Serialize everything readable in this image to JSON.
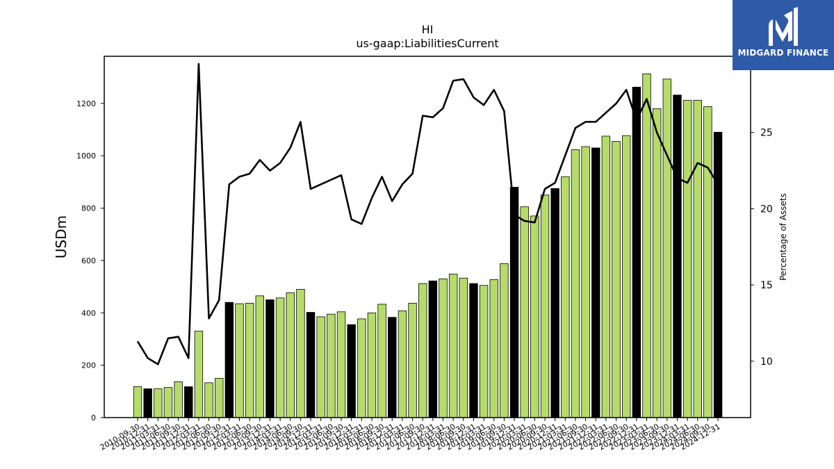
{
  "chart_data": {
    "type": "bar",
    "title": "HI",
    "subtitle": "us-gaap:LiabilitiesCurrent",
    "ylabel": "USDm",
    "y2label": "Percentage of Assets",
    "ylim": [
      0,
      1380
    ],
    "y2lim": [
      6.3,
      30.0
    ],
    "yticks": [
      0,
      200,
      400,
      600,
      800,
      1000,
      1200
    ],
    "y2ticks": [
      10,
      15,
      20,
      25
    ],
    "colors": {
      "q4_bar": "#000000",
      "other_bar": "#b5dc6a",
      "line": "#000000"
    },
    "categories": [
      "2010-09-30",
      "2010-12-31",
      "2011-03-31",
      "2011-06-30",
      "2011-09-30",
      "2011-12-31",
      "2012-03-31",
      "2012-06-30",
      "2012-09-30",
      "2012-12-31",
      "2013-03-31",
      "2013-06-30",
      "2013-09-30",
      "2013-12-31",
      "2014-03-31",
      "2014-06-30",
      "2014-09-30",
      "2014-12-31",
      "2015-03-31",
      "2015-06-30",
      "2015-09-30",
      "2015-12-31",
      "2016-03-31",
      "2016-06-30",
      "2016-09-30",
      "2016-12-31",
      "2017-03-31",
      "2017-06-30",
      "2017-09-30",
      "2017-12-31",
      "2018-03-31",
      "2018-06-30",
      "2018-09-30",
      "2018-12-31",
      "2019-03-31",
      "2019-06-30",
      "2019-09-30",
      "2019-12-31",
      "2020-03-31",
      "2020-06-30",
      "2020-09-30",
      "2020-12-31",
      "2021-03-31",
      "2021-06-30",
      "2021-09-30",
      "2021-12-31",
      "2022-03-31",
      "2022-06-30",
      "2022-09-30",
      "2022-12-31",
      "2023-03-31",
      "2023-06-30",
      "2023-09-30",
      "2023-12-31",
      "2024-03-31",
      "2024-06-30",
      "2024-09-30",
      "2024-12-31"
    ],
    "series": [
      {
        "name": "",
        "kind": "bar",
        "axis": "left",
        "values": [
          118,
          110,
          110,
          115,
          137,
          118,
          330,
          133,
          150,
          440,
          435,
          437,
          465,
          450,
          457,
          477,
          490,
          402,
          385,
          395,
          404,
          355,
          377,
          400,
          433,
          383,
          408,
          437,
          512,
          522,
          530,
          548,
          533,
          512,
          505,
          527,
          588,
          880,
          805,
          770,
          850,
          875,
          920,
          1023,
          1035,
          1030,
          1075,
          1055,
          1077,
          1262,
          1313,
          1180,
          1293,
          1232,
          1212,
          1212,
          1188,
          1090
        ]
      },
      {
        "name": "",
        "kind": "line",
        "axis": "right",
        "values": [
          11.3,
          10.2,
          9.8,
          11.5,
          11.6,
          10.2,
          29.5,
          12.8,
          14.0,
          21.6,
          22.1,
          22.3,
          23.2,
          22.5,
          23.0,
          24.0,
          25.7,
          21.3,
          21.6,
          21.9,
          22.2,
          19.3,
          19.0,
          20.7,
          22.1,
          20.5,
          21.6,
          22.3,
          26.1,
          26.0,
          26.6,
          28.4,
          28.5,
          27.3,
          26.8,
          27.8,
          26.4,
          19.6,
          19.2,
          19.1,
          21.3,
          21.7,
          23.5,
          25.3,
          25.7,
          25.7,
          26.3,
          26.9,
          27.8,
          25.8,
          27.2,
          25.0,
          23.5,
          22.0,
          21.7,
          23.0,
          22.7,
          21.6
        ]
      }
    ]
  },
  "logo": {
    "text": "MIDGARD FINANCE",
    "icon": "midgard-logo-icon"
  }
}
